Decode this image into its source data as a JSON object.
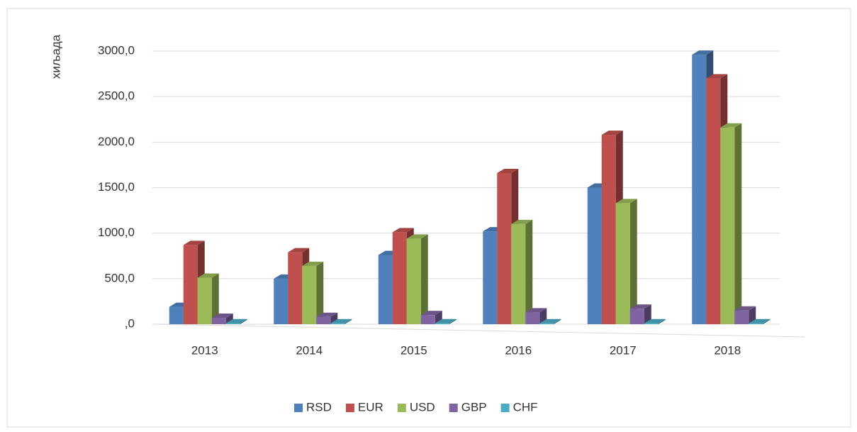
{
  "chart_data": {
    "type": "bar",
    "ylabel": "хиљада",
    "categories": [
      "2013",
      "2014",
      "2015",
      "2016",
      "2017",
      "2018"
    ],
    "series": [
      {
        "name": "RSD",
        "color": "#4f81bd",
        "values": [
          190,
          500,
          760,
          1020,
          1500,
          2960
        ]
      },
      {
        "name": "EUR",
        "color": "#c0504d",
        "values": [
          870,
          790,
          1010,
          1660,
          2080,
          2700
        ]
      },
      {
        "name": "USD",
        "color": "#9bbb59",
        "values": [
          510,
          640,
          940,
          1100,
          1330,
          2160
        ]
      },
      {
        "name": "GBP",
        "color": "#8064a2",
        "values": [
          70,
          80,
          100,
          130,
          170,
          150
        ]
      },
      {
        "name": "CHF",
        "color": "#4bacc6",
        "values": [
          10,
          10,
          10,
          10,
          10,
          10
        ]
      }
    ],
    "ylim": [
      0,
      3000
    ],
    "yticks": [
      {
        "value": 0,
        "label": ",0"
      },
      {
        "value": 500,
        "label": "500,0"
      },
      {
        "value": 1000,
        "label": "1000,0"
      },
      {
        "value": 1500,
        "label": "1500,0"
      },
      {
        "value": 2000,
        "label": "2000,0"
      },
      {
        "value": 2500,
        "label": "2500,0"
      },
      {
        "value": 3000,
        "label": "3000,0"
      }
    ],
    "grid": true,
    "legend": "bottom"
  }
}
